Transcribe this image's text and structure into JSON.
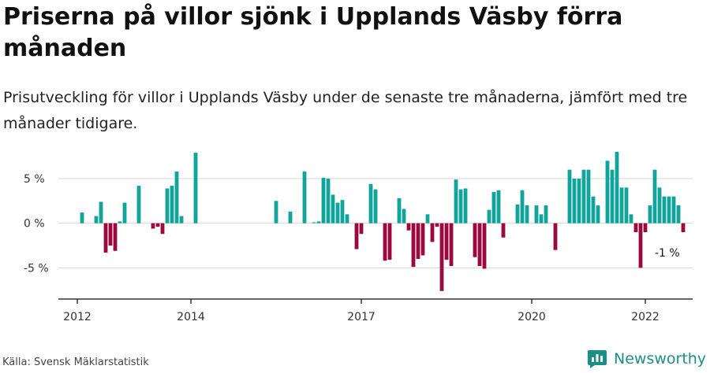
{
  "title": "Priserna på villor sjönk i Upplands Väsby förra månaden",
  "subtitle": "Prisutveckling för villor i Upplands Väsby under de senaste tre månaderna, jämfört med tre månader tidigare.",
  "source": "Källa: Svensk Mäklarstatistik",
  "brand": {
    "name": "Newsworthy",
    "icon": "newsworthy-logo-icon"
  },
  "colors": {
    "positive": "#12a39b",
    "negative": "#9b0a3f",
    "grid": "#d6d6d6",
    "axis": "#333333"
  },
  "chart_data": {
    "type": "bar",
    "x_start": "2012-01",
    "interval": "month",
    "xlim": [
      "2011-09",
      "2022-11"
    ],
    "ylim": [
      -8.5,
      6.5
    ],
    "y_ticks": [
      5,
      0,
      -5
    ],
    "y_tick_labels": [
      "5 %",
      "0 %",
      "-5 %"
    ],
    "x_ticks": [
      "2012-01",
      "2014-01",
      "2017-01",
      "2020-01",
      "2022-01"
    ],
    "x_tick_labels": [
      "2012",
      "2014",
      "2017",
      "2020",
      "2022"
    ],
    "grid": true,
    "annotation": {
      "x": "2022-06",
      "text": "-1 %"
    },
    "values": [
      null,
      1.2,
      null,
      null,
      0.8,
      2.4,
      -3.3,
      -2.5,
      -3.1,
      0.2,
      2.3,
      null,
      null,
      4.2,
      null,
      null,
      -0.6,
      -0.4,
      -1.2,
      3.9,
      4.2,
      5.8,
      0.8,
      null,
      null,
      7.9,
      null,
      null,
      null,
      null,
      null,
      null,
      null,
      null,
      null,
      null,
      null,
      null,
      null,
      null,
      null,
      null,
      2.5,
      null,
      null,
      1.3,
      null,
      null,
      5.8,
      null,
      0.1,
      0.2,
      5.1,
      5.0,
      3.2,
      2.3,
      2.6,
      1.0,
      null,
      -2.9,
      -1.2,
      null,
      4.4,
      3.8,
      null,
      -4.2,
      -4.1,
      null,
      2.8,
      1.6,
      -0.8,
      -4.9,
      -4.0,
      -3.6,
      1.0,
      -2.1,
      -0.4,
      -7.6,
      -4.1,
      -4.8,
      4.9,
      3.8,
      3.9,
      null,
      -3.8,
      -4.8,
      -5.1,
      1.5,
      3.5,
      3.7,
      -1.6,
      null,
      null,
      2.1,
      3.7,
      2.0,
      null,
      2.0,
      1.0,
      2.0,
      null,
      -3.0,
      null,
      null,
      6.0,
      5.0,
      5.0,
      6.0,
      6.0,
      3.0,
      2.0,
      null,
      7.0,
      6.0,
      8.0,
      4.0,
      4.0,
      1.0,
      -1.0,
      -5.0,
      -1.0,
      2.0,
      6.0,
      4.0,
      3.0,
      3.0,
      3.0,
      2.0,
      -1.0
    ]
  }
}
